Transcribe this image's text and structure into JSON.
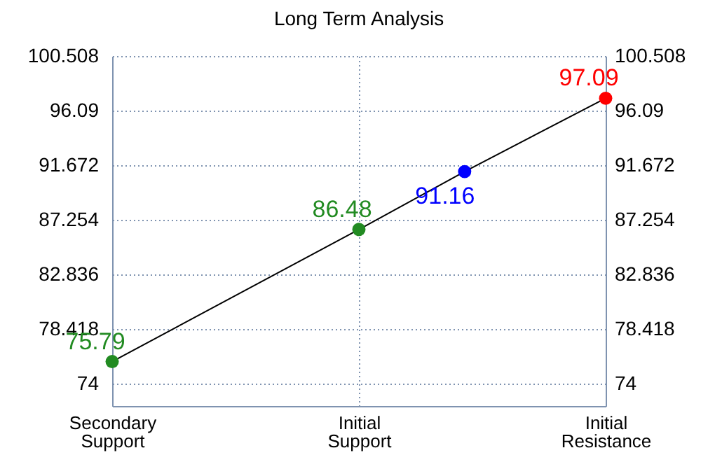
{
  "chart_data": {
    "type": "line",
    "title": "Long Term Analysis",
    "categories": [
      "Secondary Support",
      null,
      null,
      null,
      null,
      null,
      null,
      "Initial Support",
      null,
      null,
      null,
      null,
      null,
      null,
      "Initial Resistance"
    ],
    "ylim": [
      72.2,
      100.508
    ],
    "yticks": [
      74,
      78.418,
      82.836,
      87.254,
      91.672,
      96.09,
      100.508
    ],
    "y2lim": [
      72.2,
      100.508
    ],
    "y2ticks": [
      74,
      78.418,
      82.836,
      87.254,
      91.672,
      96.09,
      100.508
    ],
    "grid": true,
    "data_labels": true,
    "marker": "circle",
    "series": [
      {
        "color": "#000000",
        "values": [
          75.79,
          null,
          null,
          null,
          null,
          null,
          null,
          86.48,
          null,
          null,
          91.16,
          null,
          null,
          null,
          97.09
        ],
        "colors": [
          "#228b22",
          null,
          null,
          null,
          null,
          null,
          null,
          "#228b22",
          null,
          null,
          "#0000ff",
          null,
          null,
          null,
          "#ff0000"
        ]
      }
    ]
  }
}
